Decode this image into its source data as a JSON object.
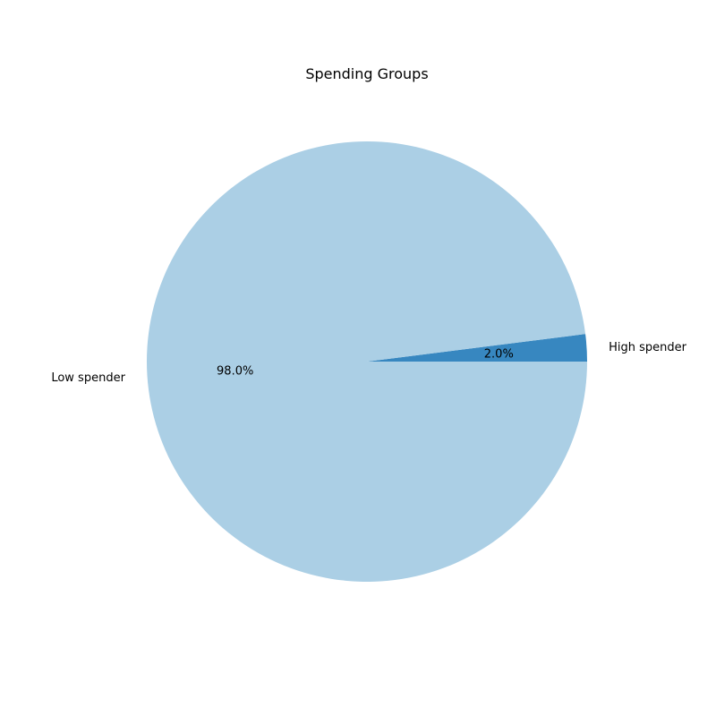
{
  "chart_data": {
    "type": "pie",
    "title": "Spending Groups",
    "slices": [
      {
        "label": "High spender",
        "value": 2.0,
        "pct_label": "2.0%",
        "color": "#3787c0"
      },
      {
        "label": "Low spender",
        "value": 98.0,
        "pct_label": "98.0%",
        "color": "#abcfe5"
      }
    ],
    "start_angle_deg": 0,
    "direction": "counterclockwise"
  }
}
